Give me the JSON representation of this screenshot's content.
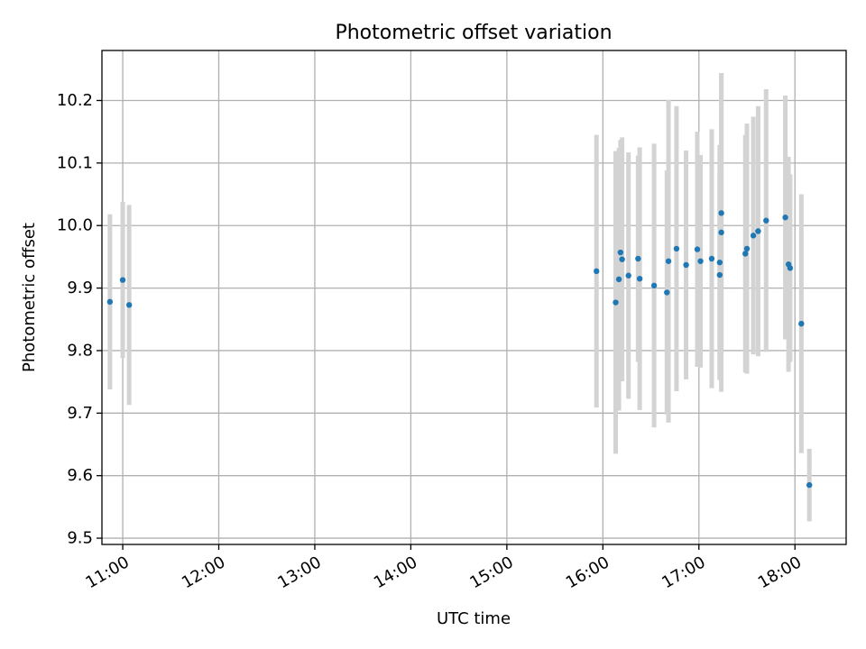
{
  "chart_data": {
    "type": "scatter",
    "title": "Photometric offset variation",
    "xlabel": "UTC time",
    "ylabel": "Photometric offset",
    "x_axis": {
      "kind": "time",
      "range": [
        "10:47",
        "18:32"
      ],
      "ticks": [
        "11:00",
        "12:00",
        "13:00",
        "14:00",
        "15:00",
        "16:00",
        "17:00",
        "18:00"
      ]
    },
    "y_axis": {
      "range": [
        9.49,
        10.28
      ],
      "ticks": [
        "9.5",
        "9.6",
        "9.7",
        "9.8",
        "9.9",
        "10.0",
        "10.1",
        "10.2"
      ]
    },
    "grid": true,
    "colors": {
      "points": "#1f77b4",
      "errorbars": "#d3d3d3",
      "grid": "#b0b0b0"
    },
    "points": [
      {
        "x": "10:52",
        "y": 9.878,
        "yerr": 0.14
      },
      {
        "x": "11:00",
        "y": 9.913,
        "yerr": 0.125
      },
      {
        "x": "11:04",
        "y": 9.873,
        "yerr": 0.16
      },
      {
        "x": "15:56",
        "y": 9.927,
        "yerr": 0.218
      },
      {
        "x": "16:08",
        "y": 9.877,
        "yerr": 0.242
      },
      {
        "x": "16:10",
        "y": 9.914,
        "yerr": 0.21
      },
      {
        "x": "16:11",
        "y": 9.957,
        "yerr": 0.18
      },
      {
        "x": "16:12",
        "y": 9.946,
        "yerr": 0.195
      },
      {
        "x": "16:16",
        "y": 9.92,
        "yerr": 0.197
      },
      {
        "x": "16:22",
        "y": 9.947,
        "yerr": 0.165
      },
      {
        "x": "16:23",
        "y": 9.915,
        "yerr": 0.21
      },
      {
        "x": "16:32",
        "y": 9.904,
        "yerr": 0.227
      },
      {
        "x": "16:40",
        "y": 9.893,
        "yerr": 0.195
      },
      {
        "x": "16:41",
        "y": 9.943,
        "yerr": 0.258
      },
      {
        "x": "16:46",
        "y": 9.963,
        "yerr": 0.228
      },
      {
        "x": "16:52",
        "y": 9.937,
        "yerr": 0.183
      },
      {
        "x": "16:59",
        "y": 9.962,
        "yerr": 0.188
      },
      {
        "x": "17:01",
        "y": 9.943,
        "yerr": 0.17
      },
      {
        "x": "17:08",
        "y": 9.947,
        "yerr": 0.207
      },
      {
        "x": "17:13",
        "y": 9.941,
        "yerr": 0.188
      },
      {
        "x": "17:13",
        "y": 9.921,
        "yerr": 0.167
      },
      {
        "x": "17:14",
        "y": 9.989,
        "yerr": 0.255
      },
      {
        "x": "17:14",
        "y": 10.02,
        "yerr": 0.224
      },
      {
        "x": "17:29",
        "y": 9.955,
        "yerr": 0.19
      },
      {
        "x": "17:30",
        "y": 9.963,
        "yerr": 0.2
      },
      {
        "x": "17:34",
        "y": 9.984,
        "yerr": 0.19
      },
      {
        "x": "17:37",
        "y": 9.991,
        "yerr": 0.2
      },
      {
        "x": "17:42",
        "y": 10.008,
        "yerr": 0.21
      },
      {
        "x": "17:54",
        "y": 10.013,
        "yerr": 0.195
      },
      {
        "x": "17:56",
        "y": 9.938,
        "yerr": 0.172
      },
      {
        "x": "17:57",
        "y": 9.932,
        "yerr": 0.15
      },
      {
        "x": "18:04",
        "y": 9.843,
        "yerr": 0.207
      },
      {
        "x": "18:09",
        "y": 9.585,
        "yerr": 0.058
      }
    ]
  }
}
